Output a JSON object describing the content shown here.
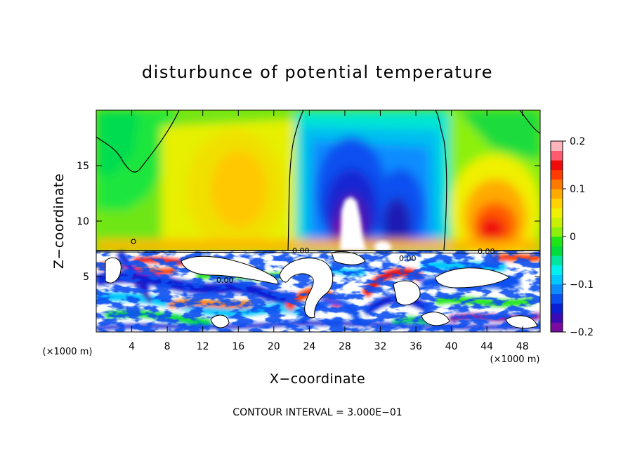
{
  "chart_data": {
    "type": "heatmap",
    "title": "disturbunce of potential temperature",
    "xlabel": "X−coordinate",
    "ylabel": "Z−coordinate",
    "x_unit_label": "(×1000 m)",
    "y_unit_label": "(×1000 m)",
    "xlim": [
      0,
      50
    ],
    "ylim": [
      0,
      20
    ],
    "x_ticks": [
      4,
      8,
      12,
      16,
      20,
      24,
      28,
      32,
      36,
      40,
      44,
      48
    ],
    "x_tick_labels": [
      "4",
      "8",
      "12",
      "16",
      "20",
      "24",
      "28",
      "32",
      "36",
      "40",
      "44",
      "48"
    ],
    "y_ticks": [
      5,
      10,
      15
    ],
    "y_tick_labels": [
      "5",
      "10",
      "15"
    ],
    "colorbar": {
      "min": -0.2,
      "max": 0.2,
      "ticks": [
        0.2,
        0.1,
        0,
        -0.1,
        -0.2
      ],
      "tick_labels": [
        "0.2",
        "0.1",
        "0",
        "−0.1",
        "−0.2"
      ],
      "colors": [
        "#7a0aa0",
        "#3a0ab4",
        "#0a1ed2",
        "#0a50f0",
        "#0a8cff",
        "#00c8ff",
        "#00f0f0",
        "#00e6a0",
        "#00dc3c",
        "#1ee614",
        "#8cf00a",
        "#c8f000",
        "#f0f000",
        "#ffd200",
        "#ffaa00",
        "#ff7800",
        "#ff3c00",
        "#f00a0a",
        "#ff5a6e",
        "#ffb4be"
      ]
    },
    "contour_labels": [
      "0.00",
      "0.00",
      "0.00",
      "0.00"
    ],
    "contour_interval_note": "CONTOUR INTERVAL = 3.000E−01",
    "description_upper": [
      {
        "x_range": [
          21.5,
          40
        ],
        "z_range": [
          7.5,
          20
        ],
        "value": -0.15,
        "note": "negative anomaly plume, white (below colour scale) core near x 28–30, z 7.5–12"
      },
      {
        "x_range": [
          8,
          21
        ],
        "z_range": [
          7.5,
          20
        ],
        "value": 0.08,
        "note": "weak positive anomaly"
      },
      {
        "x_range": [
          40,
          50
        ],
        "z_range": [
          7.5,
          20
        ],
        "value": 0.12,
        "note": "positive anomaly, red core near x 44, z 9–10"
      },
      {
        "x_range": [
          0,
          8
        ],
        "z_range": [
          7.5,
          20
        ],
        "value": 0.0,
        "note": "near-zero"
      }
    ],
    "description_lower": {
      "z_range": [
        0,
        7.5
      ],
      "note": "turbulent layer, mixed values from below −0.2 to above 0.2"
    },
    "grid": false,
    "legend": "colorbar-right"
  }
}
